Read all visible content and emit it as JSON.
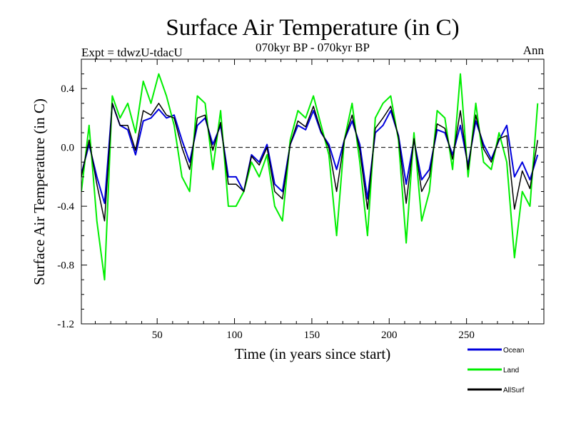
{
  "chart_data": {
    "type": "line",
    "title": "Surface Air Temperature (in C)",
    "subtitle": "070kyr BP - 070kyr BP",
    "experiment": "Expt = tdwzU-tdacU",
    "season": "Ann",
    "xlabel": "Time (in years since start)",
    "ylabel": "Surface Air Temperature (in C)",
    "xlim": [
      1,
      300
    ],
    "ylim": [
      -1.2,
      0.6
    ],
    "xticks": [
      50,
      100,
      150,
      200,
      250
    ],
    "xtick_labels": [
      "50",
      "100",
      "150",
      "200",
      "250"
    ],
    "yticks": [
      -1.2,
      -0.8,
      -0.4,
      0.0,
      0.4
    ],
    "ytick_labels": [
      "-1.2",
      "-0.8",
      "-0.4",
      "0.0",
      "0.4"
    ],
    "reference_line": 0.0,
    "legend": [
      {
        "name": "Ocean",
        "color": "#0000dd"
      },
      {
        "name": "Land",
        "color": "#00ee00"
      },
      {
        "name": "AllSurf",
        "color": "#000000"
      }
    ],
    "series": [
      {
        "name": "Ocean",
        "color": "#0000dd",
        "x_start": 1,
        "x_step": 5,
        "values": [
          -0.18,
          0.02,
          -0.2,
          -0.38,
          0.3,
          0.15,
          0.12,
          -0.05,
          0.18,
          0.2,
          0.26,
          0.2,
          0.22,
          0.05,
          -0.1,
          0.15,
          0.2,
          0.02,
          0.15,
          -0.2,
          -0.2,
          -0.3,
          -0.05,
          -0.1,
          0.02,
          -0.25,
          -0.3,
          0.02,
          0.15,
          0.12,
          0.25,
          0.1,
          0.02,
          -0.15,
          0.05,
          0.18,
          0.02,
          -0.35,
          0.1,
          0.15,
          0.25,
          0.08,
          -0.25,
          0.05,
          -0.22,
          -0.15,
          0.12,
          0.1,
          -0.05,
          0.15,
          -0.12,
          0.18,
          0.02,
          -0.08,
          0.05,
          0.15,
          -0.2,
          -0.1,
          -0.22,
          -0.05
        ]
      },
      {
        "name": "Land",
        "color": "#00ee00",
        "x_start": 1,
        "x_step": 5,
        "values": [
          -0.3,
          0.15,
          -0.5,
          -0.9,
          0.35,
          0.2,
          0.3,
          0.1,
          0.45,
          0.3,
          0.5,
          0.35,
          0.15,
          -0.2,
          -0.3,
          0.35,
          0.3,
          -0.15,
          0.25,
          -0.4,
          -0.4,
          -0.3,
          -0.1,
          -0.2,
          -0.05,
          -0.4,
          -0.5,
          0.05,
          0.25,
          0.2,
          0.35,
          0.15,
          -0.05,
          -0.6,
          0.05,
          0.3,
          -0.1,
          -0.6,
          0.2,
          0.3,
          0.35,
          0.05,
          -0.65,
          0.1,
          -0.5,
          -0.3,
          0.25,
          0.2,
          -0.15,
          0.5,
          -0.2,
          0.3,
          -0.1,
          -0.15,
          0.1,
          -0.1,
          -0.75,
          -0.3,
          -0.4,
          0.3
        ]
      },
      {
        "name": "AllSurf",
        "color": "#000000",
        "x_start": 1,
        "x_step": 5,
        "values": [
          -0.2,
          0.05,
          -0.25,
          -0.5,
          0.3,
          0.15,
          0.15,
          -0.02,
          0.25,
          0.22,
          0.3,
          0.22,
          0.2,
          0.0,
          -0.15,
          0.2,
          0.22,
          -0.02,
          0.17,
          -0.25,
          -0.25,
          -0.3,
          -0.06,
          -0.12,
          0.0,
          -0.3,
          -0.35,
          0.02,
          0.18,
          0.14,
          0.28,
          0.11,
          0.0,
          -0.3,
          0.05,
          0.22,
          -0.02,
          -0.42,
          0.13,
          0.2,
          0.28,
          0.07,
          -0.38,
          0.06,
          -0.3,
          -0.2,
          0.16,
          0.13,
          -0.08,
          0.25,
          -0.15,
          0.22,
          -0.01,
          -0.1,
          0.06,
          0.08,
          -0.42,
          -0.16,
          -0.28,
          0.05
        ]
      }
    ]
  }
}
